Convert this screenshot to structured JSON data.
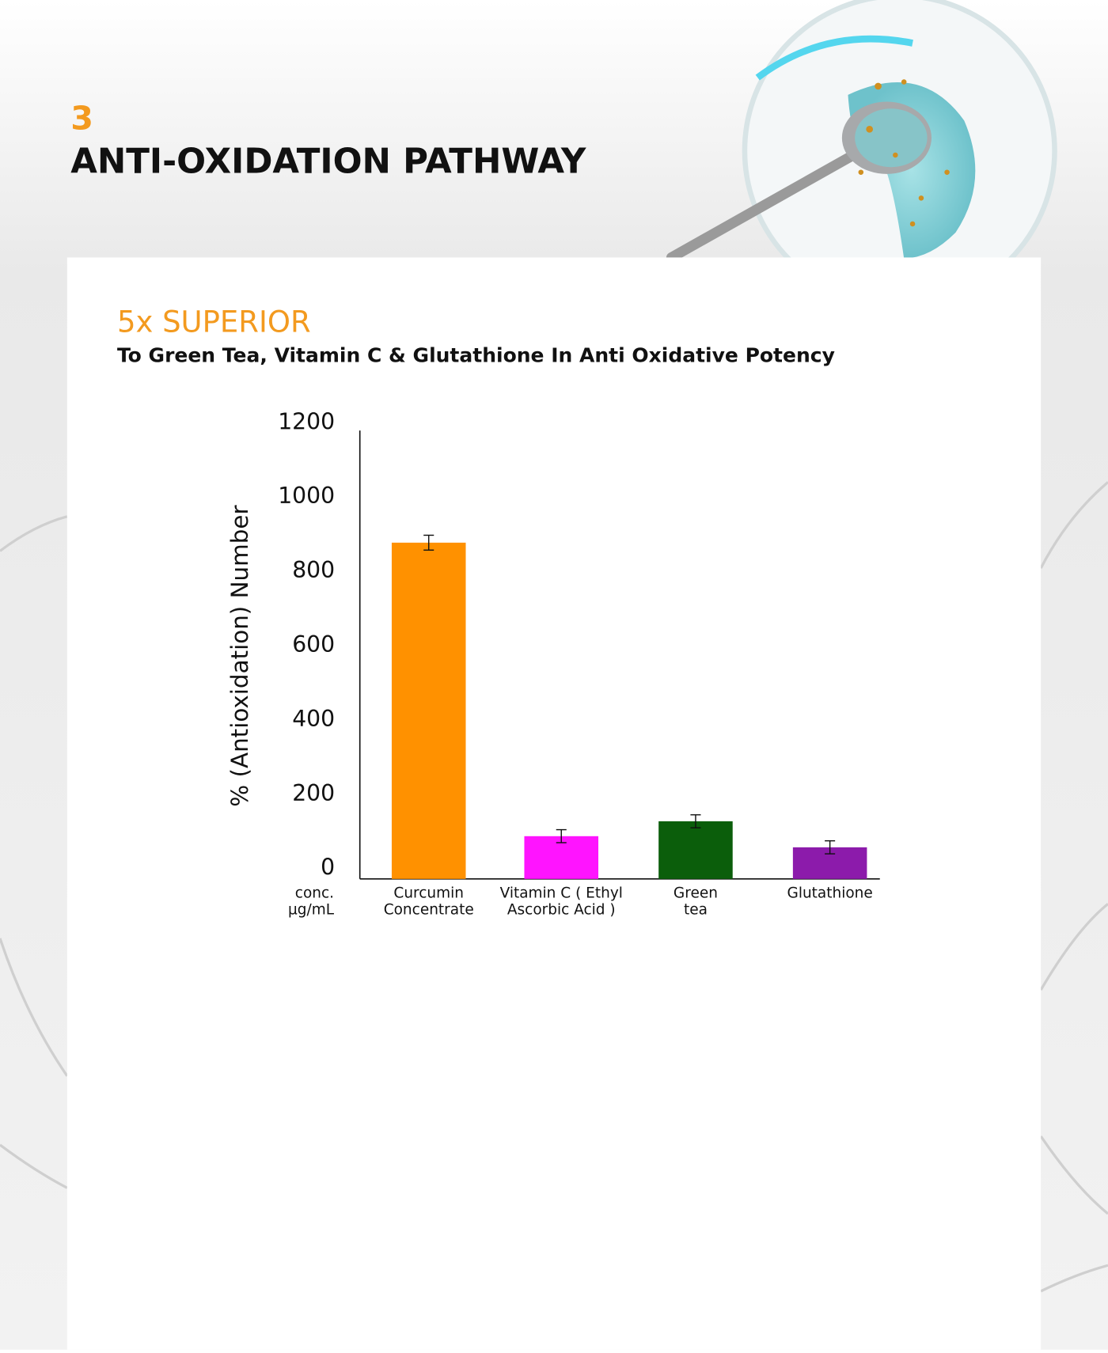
{
  "section": {
    "number": "3",
    "title": "ANTI-OXIDATION PATHWAY"
  },
  "chart_data": {
    "type": "bar",
    "title": "5x SUPERIOR",
    "subtitle": "To Green Tea, Vitamin C & Glutathione In Anti Oxidative Potency",
    "y_label": "% (Antioxidation) Number",
    "x_label": "conc. µg/mL",
    "categories": [
      "Curcumin Concentrate",
      "Vitamin C ( Ethyl Ascorbic Acid )",
      "Green tea",
      "Glutathione"
    ],
    "values": [
      905,
      115,
      155,
      85
    ],
    "errors": [
      40,
      35,
      35,
      35
    ],
    "colors": [
      "#ff9100",
      "#ff14ff",
      "#0b5e0b",
      "#8c1bab"
    ],
    "ylim": [
      0,
      1200
    ],
    "yticks": [
      0,
      200,
      400,
      600,
      800,
      1000,
      1200
    ],
    "grid": false
  }
}
